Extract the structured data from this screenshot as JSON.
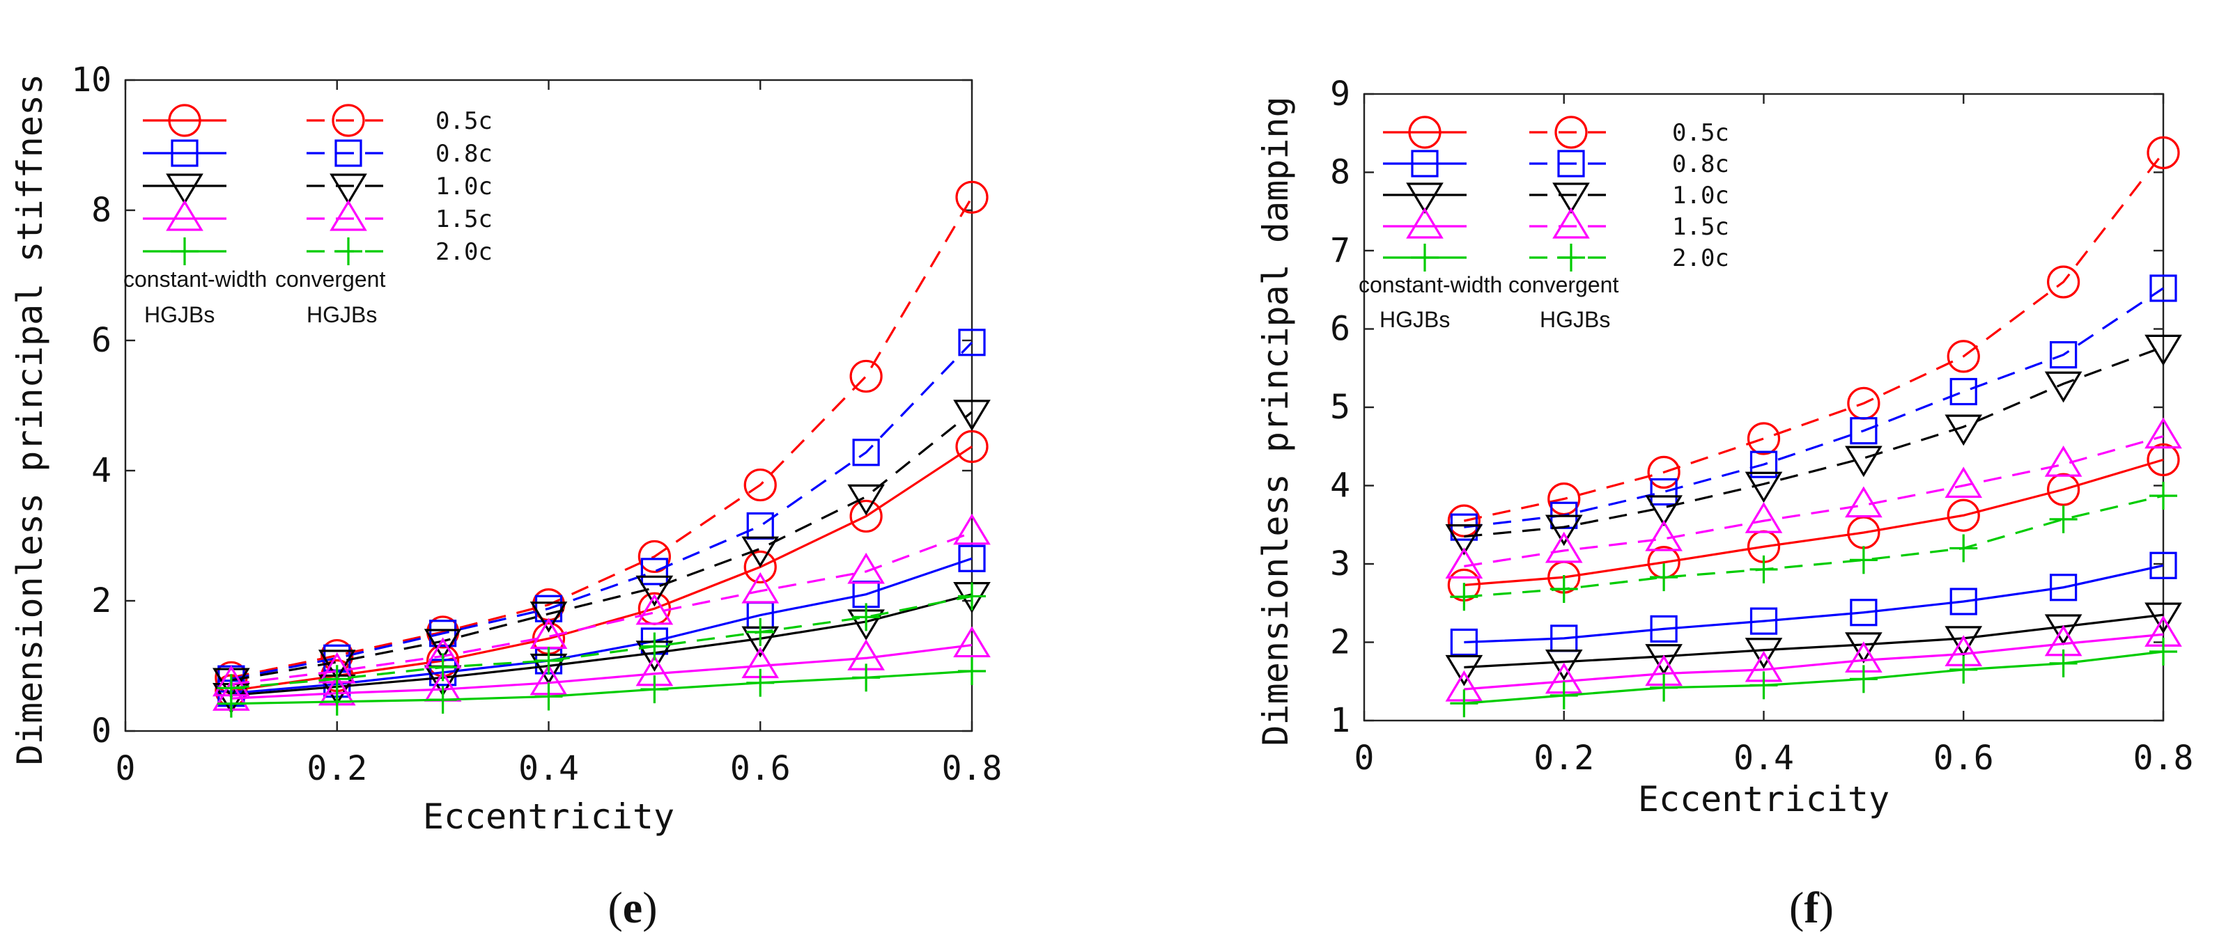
{
  "chart_data": [
    {
      "type": "line",
      "panel_label": "(e)",
      "panel_letter": "e",
      "xlabel": "Eccentricity",
      "ylabel": "Dimensionless principal stiffness",
      "xlim": [
        0,
        0.8
      ],
      "ylim": [
        0,
        10
      ],
      "xticks": [
        0,
        0.2,
        0.4,
        0.6,
        0.8
      ],
      "xtick_labels": [
        "0",
        "0.2",
        "0.4",
        "0.6",
        "0.8"
      ],
      "yticks": [
        0,
        2,
        4,
        6,
        8,
        10
      ],
      "ytick_labels": [
        "0",
        "2",
        "4",
        "6",
        "8",
        "10"
      ],
      "x": [
        0.1,
        0.2,
        0.3,
        0.4,
        0.5,
        0.6,
        0.7,
        0.8
      ],
      "legend_note": [
        "constant-width",
        "convergent",
        "HGJBs",
        "HGJBs"
      ],
      "series": [
        {
          "name": "0.5c constant-width",
          "group": "0.5c",
          "style": "solid",
          "marker": "circle",
          "color": "#ff0000",
          "values": [
            0.62,
            0.85,
            1.08,
            1.42,
            1.88,
            2.52,
            3.3,
            4.37
          ]
        },
        {
          "name": "0.5c convergent",
          "group": "0.5c",
          "style": "dashed",
          "marker": "circle",
          "color": "#ff0000",
          "values": [
            0.82,
            1.16,
            1.52,
            1.94,
            2.68,
            3.78,
            5.45,
            8.2
          ]
        },
        {
          "name": "0.8c constant-width",
          "group": "0.8c",
          "style": "solid",
          "marker": "square",
          "color": "#0000ff",
          "values": [
            0.58,
            0.72,
            0.9,
            1.08,
            1.38,
            1.78,
            2.1,
            2.65
          ]
        },
        {
          "name": "0.8c convergent",
          "group": "0.8c",
          "style": "dashed",
          "marker": "square",
          "color": "#0000ff",
          "values": [
            0.8,
            1.12,
            1.5,
            1.88,
            2.45,
            3.15,
            4.28,
            5.97
          ]
        },
        {
          "name": "1.0c constant-width",
          "group": "1.0c",
          "style": "solid",
          "marker": "triangle-down",
          "color": "#000000",
          "values": [
            0.55,
            0.68,
            0.82,
            1.0,
            1.2,
            1.42,
            1.68,
            2.1
          ]
        },
        {
          "name": "1.0c convergent",
          "group": "1.0c",
          "style": "dashed",
          "marker": "triangle-down",
          "color": "#000000",
          "values": [
            0.78,
            1.06,
            1.38,
            1.8,
            2.2,
            2.8,
            3.6,
            4.9
          ]
        },
        {
          "name": "1.5c constant-width",
          "group": "1.5c",
          "style": "solid",
          "marker": "triangle-up",
          "color": "#ff00ff",
          "values": [
            0.5,
            0.58,
            0.64,
            0.74,
            0.88,
            1.0,
            1.12,
            1.32
          ]
        },
        {
          "name": "1.5c convergent",
          "group": "1.5c",
          "style": "dashed",
          "marker": "triangle-up",
          "color": "#ff00ff",
          "values": [
            0.72,
            0.92,
            1.15,
            1.45,
            1.82,
            2.15,
            2.45,
            3.05
          ]
        },
        {
          "name": "2.0c constant-width",
          "group": "2.0c",
          "style": "solid",
          "marker": "plus",
          "color": "#00cc00",
          "values": [
            0.42,
            0.45,
            0.48,
            0.53,
            0.64,
            0.74,
            0.82,
            0.92
          ]
        },
        {
          "name": "2.0c convergent",
          "group": "2.0c",
          "style": "dashed",
          "marker": "plus",
          "color": "#00cc00",
          "values": [
            0.66,
            0.8,
            0.98,
            1.08,
            1.3,
            1.52,
            1.75,
            2.07
          ]
        }
      ],
      "legend": [
        {
          "label": "0.5c",
          "marker": "circle",
          "color": "#ff0000"
        },
        {
          "label": "0.8c",
          "marker": "square",
          "color": "#0000ff"
        },
        {
          "label": "1.0c",
          "marker": "triangle-down",
          "color": "#000000"
        },
        {
          "label": "1.5c",
          "marker": "triangle-up",
          "color": "#ff00ff"
        },
        {
          "label": "2.0c",
          "marker": "plus",
          "color": "#00cc00"
        }
      ]
    },
    {
      "type": "line",
      "panel_label": "(f)",
      "panel_letter": "f",
      "xlabel": "Eccentricity",
      "ylabel": "Dimensionless principal damping",
      "xlim": [
        0,
        0.8
      ],
      "ylim": [
        1,
        9
      ],
      "xticks": [
        0,
        0.2,
        0.4,
        0.6,
        0.8
      ],
      "xtick_labels": [
        "0",
        "0.2",
        "0.4",
        "0.6",
        "0.8"
      ],
      "yticks": [
        1,
        2,
        3,
        4,
        5,
        6,
        7,
        8,
        9
      ],
      "ytick_labels": [
        "1",
        "2",
        "3",
        "4",
        "5",
        "6",
        "7",
        "8",
        "9"
      ],
      "x": [
        0.1,
        0.2,
        0.3,
        0.4,
        0.5,
        0.6,
        0.7,
        0.8
      ],
      "legend_note": [
        "constant-width",
        "convergent",
        "HGJBs",
        "HGJBs"
      ],
      "series": [
        {
          "name": "0.5c constant-width",
          "group": "0.5c",
          "style": "solid",
          "marker": "circle",
          "color": "#ff0000",
          "values": [
            2.73,
            2.83,
            3.02,
            3.22,
            3.4,
            3.62,
            3.95,
            4.33
          ]
        },
        {
          "name": "0.5c convergent",
          "group": "0.5c",
          "style": "dashed",
          "marker": "circle",
          "color": "#ff0000",
          "values": [
            3.55,
            3.83,
            4.17,
            4.6,
            5.05,
            5.65,
            6.6,
            8.25
          ]
        },
        {
          "name": "0.8c constant-width",
          "group": "0.8c",
          "style": "solid",
          "marker": "square",
          "color": "#0000ff",
          "values": [
            2.0,
            2.05,
            2.17,
            2.27,
            2.38,
            2.52,
            2.7,
            2.98
          ]
        },
        {
          "name": "0.8c convergent",
          "group": "0.8c",
          "style": "dashed",
          "marker": "square",
          "color": "#0000ff",
          "values": [
            3.47,
            3.62,
            3.92,
            4.27,
            4.7,
            5.2,
            5.67,
            6.52
          ]
        },
        {
          "name": "1.0c constant-width",
          "group": "1.0c",
          "style": "solid",
          "marker": "triangle-down",
          "color": "#000000",
          "values": [
            1.68,
            1.75,
            1.82,
            1.9,
            1.97,
            2.05,
            2.2,
            2.35
          ]
        },
        {
          "name": "1.0c convergent",
          "group": "1.0c",
          "style": "dashed",
          "marker": "triangle-down",
          "color": "#000000",
          "values": [
            3.35,
            3.47,
            3.72,
            4.02,
            4.35,
            4.75,
            5.3,
            5.77
          ]
        },
        {
          "name": "1.5c constant-width",
          "group": "1.5c",
          "style": "solid",
          "marker": "triangle-up",
          "color": "#ff00ff",
          "values": [
            1.4,
            1.5,
            1.6,
            1.65,
            1.77,
            1.85,
            1.98,
            2.1
          ]
        },
        {
          "name": "1.5c convergent",
          "group": "1.5c",
          "style": "dashed",
          "marker": "triangle-up",
          "color": "#ff00ff",
          "values": [
            2.97,
            3.17,
            3.32,
            3.55,
            3.75,
            4.0,
            4.27,
            4.63
          ]
        },
        {
          "name": "2.0c constant-width",
          "group": "2.0c",
          "style": "solid",
          "marker": "plus",
          "color": "#00cc00",
          "values": [
            1.22,
            1.32,
            1.42,
            1.45,
            1.53,
            1.65,
            1.73,
            1.88
          ]
        },
        {
          "name": "2.0c convergent",
          "group": "2.0c",
          "style": "dashed",
          "marker": "plus",
          "color": "#00cc00",
          "values": [
            2.58,
            2.68,
            2.83,
            2.93,
            3.05,
            3.2,
            3.57,
            3.87
          ]
        }
      ],
      "legend": [
        {
          "label": "0.5c",
          "marker": "circle",
          "color": "#ff0000"
        },
        {
          "label": "0.8c",
          "marker": "square",
          "color": "#0000ff"
        },
        {
          "label": "1.0c",
          "marker": "triangle-down",
          "color": "#000000"
        },
        {
          "label": "1.5c",
          "marker": "triangle-up",
          "color": "#ff00ff"
        },
        {
          "label": "2.0c",
          "marker": "plus",
          "color": "#00cc00"
        }
      ]
    }
  ]
}
